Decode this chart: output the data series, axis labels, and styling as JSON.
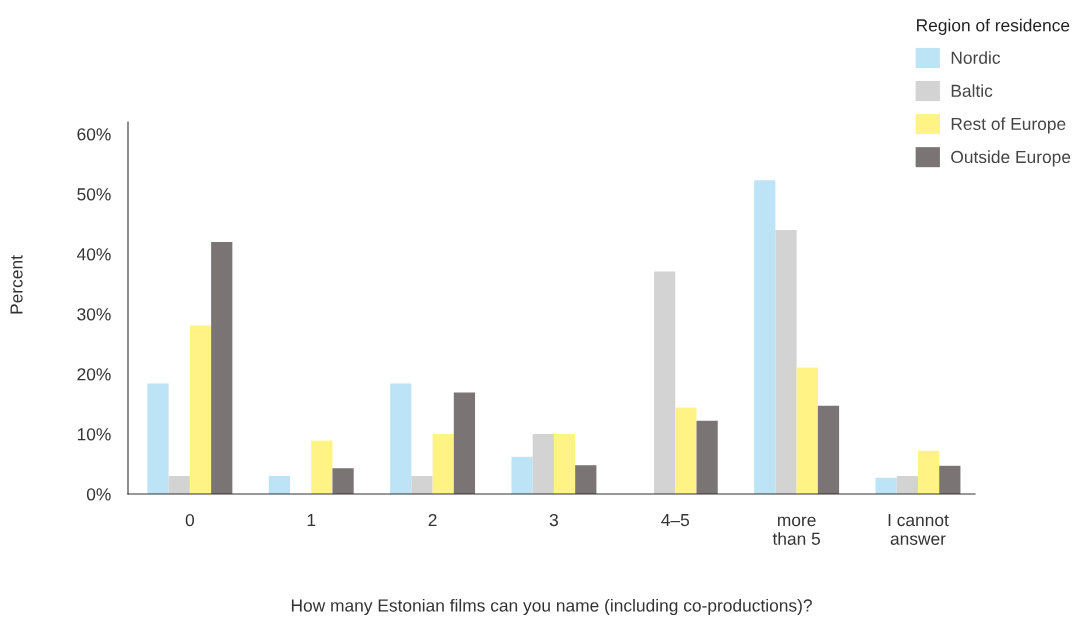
{
  "chart_data": {
    "type": "bar",
    "xlabel": "How many Estonian films can you name (including co-productions)?",
    "ylabel": "Percent",
    "legend_title": "Region of residence",
    "categories": [
      "0",
      "1",
      "2",
      "3",
      "4–5",
      "more\nthan 5",
      "I cannot\nanswer"
    ],
    "series": [
      {
        "name": "Nordic",
        "color": "#bde3f6",
        "values": [
          18.4,
          3.0,
          18.4,
          6.2,
          0,
          52.3,
          2.7
        ]
      },
      {
        "name": "Baltic",
        "color": "#d3d3d3",
        "values": [
          3.0,
          0,
          3.0,
          10.0,
          37.1,
          44.0,
          3.0
        ]
      },
      {
        "name": "Rest of Europe",
        "color": "#fff385",
        "values": [
          28.1,
          8.9,
          10.0,
          10.0,
          14.4,
          21.1,
          7.2
        ]
      },
      {
        "name": "Outside Europe",
        "color": "#7b7474",
        "values": [
          42.0,
          4.3,
          16.9,
          4.8,
          12.2,
          14.7,
          4.7
        ]
      }
    ],
    "ylim": [
      0,
      62
    ],
    "yticks": [
      {
        "value": 0,
        "label": "0%"
      },
      {
        "value": 10,
        "label": "10%"
      },
      {
        "value": 20,
        "label": "20%"
      },
      {
        "value": 30,
        "label": "30%"
      },
      {
        "value": 40,
        "label": "40%"
      },
      {
        "value": 50,
        "label": "50%"
      },
      {
        "value": 60,
        "label": "60%"
      }
    ],
    "grid": false,
    "legend": "top right"
  }
}
